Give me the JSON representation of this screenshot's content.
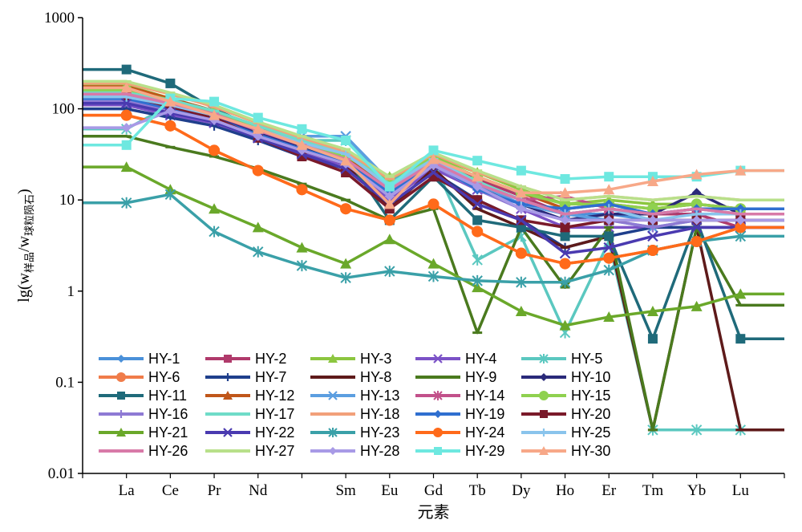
{
  "chart_data": {
    "type": "line",
    "y_scale": "log",
    "ylim": [
      0.01,
      1000
    ],
    "y_ticks": [
      0.01,
      0.1,
      1,
      10,
      100,
      1000
    ],
    "y_tick_labels": [
      "0.01",
      "0.1",
      "1",
      "10",
      "100",
      "1000"
    ],
    "ylabel_prefix": "lg(w",
    "ylabel_sub1": "样品",
    "ylabel_mid": "/w",
    "ylabel_sub2": "球粒陨石",
    "ylabel_suffix": ")",
    "xlabel": "元素",
    "categories": [
      "La",
      "Ce",
      "Pr",
      "Nd",
      "Sm",
      "Eu",
      "Gd",
      "Tb",
      "Dy",
      "Ho",
      "Er",
      "Tm",
      "Yb",
      "Lu"
    ],
    "category_positions": [
      1,
      2,
      3,
      4,
      6,
      7,
      8,
      9,
      10,
      11,
      12,
      13,
      14,
      15
    ],
    "x_values": [
      0,
      1,
      2,
      3,
      4,
      5,
      6,
      7,
      8,
      9,
      10,
      11,
      12,
      13,
      14,
      15,
      16
    ],
    "grid": false,
    "legend_position": "bottom-left inside",
    "series": [
      {
        "name": "HY-1",
        "color": "#4a90d9",
        "marker": "diamond",
        "values": [
          130,
          130,
          90,
          75,
          50,
          35,
          25,
          11,
          28,
          16,
          10,
          7,
          7,
          6,
          6,
          6,
          6
        ]
      },
      {
        "name": "HY-2",
        "color": "#b03a6b",
        "marker": "square",
        "values": [
          150,
          150,
          110,
          80,
          55,
          38,
          28,
          14,
          25,
          17,
          11,
          7,
          8,
          7,
          7,
          5,
          5
        ]
      },
      {
        "name": "HY-3",
        "color": "#8cc63f",
        "marker": "triangle",
        "values": [
          180,
          180,
          130,
          95,
          65,
          45,
          32,
          18,
          30,
          20,
          13,
          9,
          10,
          9,
          9,
          8,
          8
        ]
      },
      {
        "name": "HY-4",
        "color": "#7b52c7",
        "marker": "x",
        "values": [
          110,
          110,
          85,
          70,
          48,
          33,
          24,
          10,
          22,
          13,
          8,
          5,
          5,
          5,
          5,
          5,
          5
        ]
      },
      {
        "name": "HY-5",
        "color": "#5bc8c0",
        "marker": "asterisk",
        "values": [
          60,
          60,
          110,
          80,
          60,
          45,
          45,
          15,
          26,
          2.2,
          4,
          0.35,
          3.5,
          0.03,
          0.03,
          0.03,
          0.03
        ]
      },
      {
        "name": "HY-6",
        "color": "#f07c4a",
        "marker": "circle",
        "values": [
          85,
          85,
          65,
          35,
          21,
          13,
          8,
          6,
          9,
          4.5,
          2.6,
          2,
          2.3,
          2.8,
          3.5,
          5,
          5
        ]
      },
      {
        "name": "HY-7",
        "color": "#1f3f8c",
        "marker": "plus",
        "values": [
          100,
          100,
          80,
          65,
          45,
          30,
          22,
          9,
          20,
          10,
          6,
          3,
          4,
          5,
          5,
          5,
          5
        ]
      },
      {
        "name": "HY-8",
        "color": "#5e1a1a",
        "marker": "dash",
        "values": [
          120,
          120,
          95,
          75,
          50,
          35,
          25,
          8,
          22,
          8,
          5,
          3,
          4,
          0.03,
          5,
          0.03,
          0.03
        ]
      },
      {
        "name": "HY-9",
        "color": "#4a7a1e",
        "marker": "dash",
        "values": [
          50,
          50,
          38,
          30,
          22,
          15,
          10,
          6,
          8,
          0.35,
          5,
          1.1,
          5,
          0.03,
          5,
          0.7,
          0.7
        ]
      },
      {
        "name": "HY-10",
        "color": "#2a2a7a",
        "marker": "diamond",
        "values": [
          140,
          140,
          100,
          80,
          55,
          38,
          28,
          12,
          26,
          14,
          9,
          6,
          7,
          7,
          12,
          7,
          7
        ]
      },
      {
        "name": "HY-11",
        "color": "#1f6a7a",
        "marker": "square",
        "values": [
          270,
          270,
          190,
          100,
          60,
          40,
          30,
          6,
          18,
          6,
          5,
          4,
          4,
          0.3,
          6,
          0.3,
          0.3
        ]
      },
      {
        "name": "HY-12",
        "color": "#c0561a",
        "marker": "triangle",
        "values": [
          175,
          175,
          130,
          95,
          62,
          42,
          30,
          14,
          28,
          18,
          12,
          8,
          9,
          8,
          9,
          8,
          8
        ]
      },
      {
        "name": "HY-13",
        "color": "#5b9ee0",
        "marker": "x",
        "values": [
          125,
          125,
          105,
          85,
          65,
          50,
          50,
          16,
          28,
          15,
          9,
          7,
          6,
          5,
          6,
          6,
          6
        ]
      },
      {
        "name": "HY-14",
        "color": "#c2508a",
        "marker": "asterisk",
        "values": [
          150,
          150,
          115,
          85,
          58,
          40,
          28,
          12,
          26,
          15,
          10,
          11,
          8,
          7,
          8,
          7,
          7
        ]
      },
      {
        "name": "HY-15",
        "color": "#8fd14f",
        "marker": "circle",
        "values": [
          160,
          160,
          125,
          90,
          60,
          42,
          30,
          17,
          29,
          18,
          12,
          9,
          9,
          8,
          9,
          8,
          8
        ]
      },
      {
        "name": "HY-16",
        "color": "#8e7ad4",
        "marker": "plus",
        "values": [
          120,
          120,
          95,
          75,
          52,
          36,
          25,
          11,
          24,
          13,
          8,
          6,
          6,
          5,
          6,
          6,
          6
        ]
      },
      {
        "name": "HY-17",
        "color": "#6fdcc8",
        "marker": "dash",
        "values": [
          150,
          150,
          125,
          95,
          65,
          45,
          32,
          15,
          28,
          16,
          10,
          7,
          8,
          7,
          8,
          7,
          7
        ]
      },
      {
        "name": "HY-18",
        "color": "#f2a07a",
        "marker": "dash",
        "values": [
          190,
          190,
          145,
          105,
          70,
          48,
          34,
          17,
          32,
          20,
          14,
          10,
          11,
          10,
          11,
          10,
          10
        ]
      },
      {
        "name": "HY-19",
        "color": "#2f6fd0",
        "marker": "diamond",
        "values": [
          130,
          130,
          100,
          78,
          52,
          36,
          26,
          12,
          25,
          13,
          9,
          8,
          9,
          7,
          8,
          8,
          8
        ]
      },
      {
        "name": "HY-20",
        "color": "#7a1a2a",
        "marker": "square",
        "values": [
          140,
          140,
          105,
          80,
          48,
          30,
          20,
          8,
          18,
          10,
          6,
          5,
          6,
          6,
          6,
          6,
          6
        ]
      },
      {
        "name": "HY-21",
        "color": "#6aa82a",
        "marker": "triangle",
        "values": [
          23,
          23,
          13,
          8,
          5,
          3,
          2,
          3.7,
          2,
          1.1,
          0.6,
          0.42,
          0.52,
          0.6,
          0.68,
          0.93,
          0.93
        ]
      },
      {
        "name": "HY-22",
        "color": "#4a3ab0",
        "marker": "x",
        "values": [
          115,
          115,
          90,
          72,
          48,
          32,
          22,
          9,
          20,
          9,
          6,
          2.6,
          3,
          4,
          5,
          5,
          5
        ]
      },
      {
        "name": "HY-23",
        "color": "#3aa0a8",
        "marker": "asterisk",
        "values": [
          9.3,
          9.3,
          11.5,
          4.5,
          2.7,
          1.9,
          1.4,
          1.65,
          1.45,
          1.3,
          1.25,
          1.25,
          1.7,
          2.8,
          3.5,
          4,
          4
        ]
      },
      {
        "name": "HY-24",
        "color": "#ff6a1a",
        "marker": "circle",
        "values": [
          85,
          85,
          65,
          35,
          21,
          13,
          8,
          6,
          9,
          4.5,
          2.6,
          2,
          2.3,
          2.8,
          3.5,
          5,
          5
        ]
      },
      {
        "name": "HY-25",
        "color": "#8ac4ec",
        "marker": "plus",
        "values": [
          135,
          135,
          110,
          85,
          60,
          42,
          32,
          14,
          28,
          15,
          10,
          7,
          8,
          6,
          7,
          7,
          7
        ]
      },
      {
        "name": "HY-26",
        "color": "#d87aa8",
        "marker": "dash",
        "values": [
          145,
          145,
          115,
          88,
          58,
          40,
          28,
          13,
          26,
          15,
          10,
          7,
          8,
          7,
          8,
          7,
          7
        ]
      },
      {
        "name": "HY-27",
        "color": "#b8e08a",
        "marker": "dash",
        "values": [
          200,
          200,
          150,
          110,
          72,
          50,
          36,
          18,
          33,
          21,
          14,
          10,
          11,
          10,
          11,
          10,
          10
        ]
      },
      {
        "name": "HY-28",
        "color": "#a89ae6",
        "marker": "diamond",
        "values": [
          62,
          62,
          95,
          75,
          50,
          35,
          25,
          11,
          24,
          14,
          8,
          6,
          6,
          6,
          6,
          6,
          6
        ]
      },
      {
        "name": "HY-29",
        "color": "#6ee8e0",
        "marker": "square",
        "values": [
          40,
          40,
          130,
          120,
          80,
          60,
          45,
          14,
          35,
          27,
          21,
          17,
          18,
          18,
          18,
          21,
          21
        ]
      },
      {
        "name": "HY-30",
        "color": "#f7a888",
        "marker": "triangle",
        "values": [
          170,
          170,
          120,
          85,
          60,
          40,
          27,
          9,
          28,
          18,
          12,
          12,
          13,
          16,
          19,
          21,
          21
        ]
      }
    ]
  }
}
